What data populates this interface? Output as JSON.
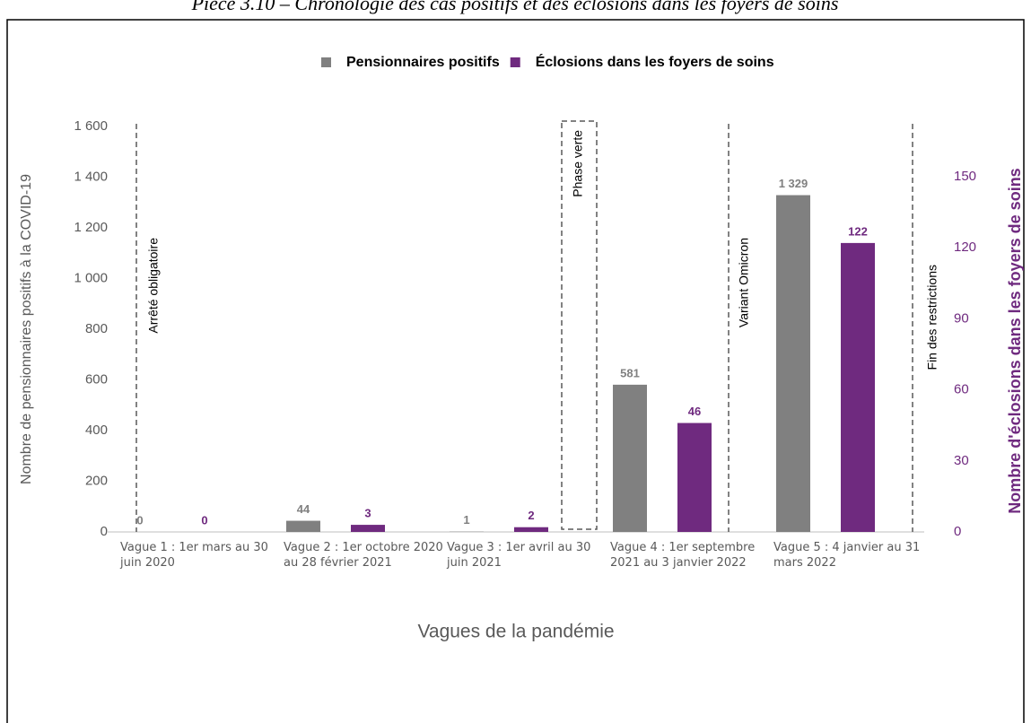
{
  "chart_data": {
    "type": "bar",
    "title": "Pièce 3.10 – Chronologie des cas positifs et des éclosions dans les foyers de soins",
    "categories": [
      "Vague 1 : 1er mars au 30 juin 2020",
      "Vague 2 : 1er octobre 2020 au 28 février 2021",
      "Vague 3 : 1er avril au 30 juin 2021",
      "Vague 4 : 1er septembre 2021 au 3 janvier 2022",
      "Vague 5 : 4 janvier au 31 mars 2022"
    ],
    "series": [
      {
        "name": "Pensionnaires positifs",
        "color": "#808080",
        "values": [
          0,
          44,
          1,
          581,
          1329
        ],
        "value_labels": [
          "0",
          "44",
          "1",
          "581",
          "1 329"
        ]
      },
      {
        "name": "Éclosions dans les foyers de soins",
        "color": "#6f2a7f",
        "axis": "y2",
        "values": [
          0,
          3,
          2,
          46,
          122
        ]
      }
    ],
    "ylabel": "Nombre de pensionnaires positifs à la COVID-19",
    "y2label": "Nombre d'éclosions dans les foyers de soins",
    "xlabel": "Vagues de la pandémie",
    "ylim": [
      0,
      1600
    ],
    "yticks": [
      0,
      200,
      400,
      600,
      800,
      {
        "value": 1000,
        "label": "1 000"
      },
      {
        "value": 1200,
        "label": "1 200"
      },
      {
        "value": 1400,
        "label": "1 400"
      },
      {
        "value": 1600,
        "label": "1 600"
      }
    ],
    "y2lim": [
      0,
      171.2
    ],
    "y2ticks": [
      0,
      30,
      60,
      90,
      120,
      150
    ],
    "annotations": [
      "Arrêté obligatoire",
      "Phase verte",
      "Variant Omicron",
      "Fin des restrictions"
    ],
    "legend": "top"
  }
}
